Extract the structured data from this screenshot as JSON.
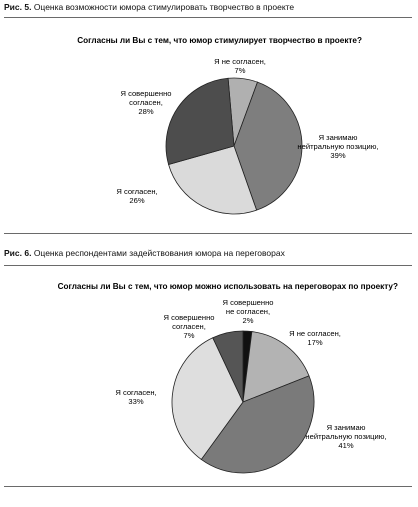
{
  "figure1": {
    "number": "Рис. 5.",
    "caption": "Оценка возможности юмора стимулировать творчество в проекте"
  },
  "figure2": {
    "number": "Рис. 6.",
    "caption": "Оценка респондентами задействования юмора на переговорах"
  },
  "colors": {
    "black": "#111111",
    "dark_gray": "#555555",
    "mid_gray": "#8f8f8f",
    "light_gray": "#b3b3b3",
    "very_light_gray": "#dcdcdc",
    "outline": "#222222"
  },
  "chart_data": [
    {
      "type": "pie",
      "title": "Согласны ли Вы с тем, что юмор стимулирует творчество в проекте?",
      "slices": [
        {
          "label": [
            "Я не согласен,",
            "7%"
          ],
          "value": 7
        },
        {
          "label": [
            "Я занимаю",
            "нейтральную позицию,",
            "39%"
          ],
          "value": 39
        },
        {
          "label": [
            "Я согласен,",
            "26%"
          ],
          "value": 26
        },
        {
          "label": [
            "Я совершенно",
            "согласен,",
            "28%"
          ],
          "value": 28
        }
      ]
    },
    {
      "type": "pie",
      "title": "Согласны ли Вы с тем, что юмор можно использовать на переговорах по проекту?",
      "slices": [
        {
          "label": [
            "Я совершенно",
            "не согласен,",
            "2%"
          ],
          "value": 2
        },
        {
          "label": [
            "Я не согласен,",
            "17%"
          ],
          "value": 17
        },
        {
          "label": [
            "Я занимаю",
            "нейтральную позицию,",
            "41%"
          ],
          "value": 41
        },
        {
          "label": [
            "Я согласен,",
            "33%"
          ],
          "value": 33
        },
        {
          "label": [
            "Я совершенно",
            "согласен,",
            "7%"
          ],
          "value": 7
        }
      ]
    }
  ]
}
